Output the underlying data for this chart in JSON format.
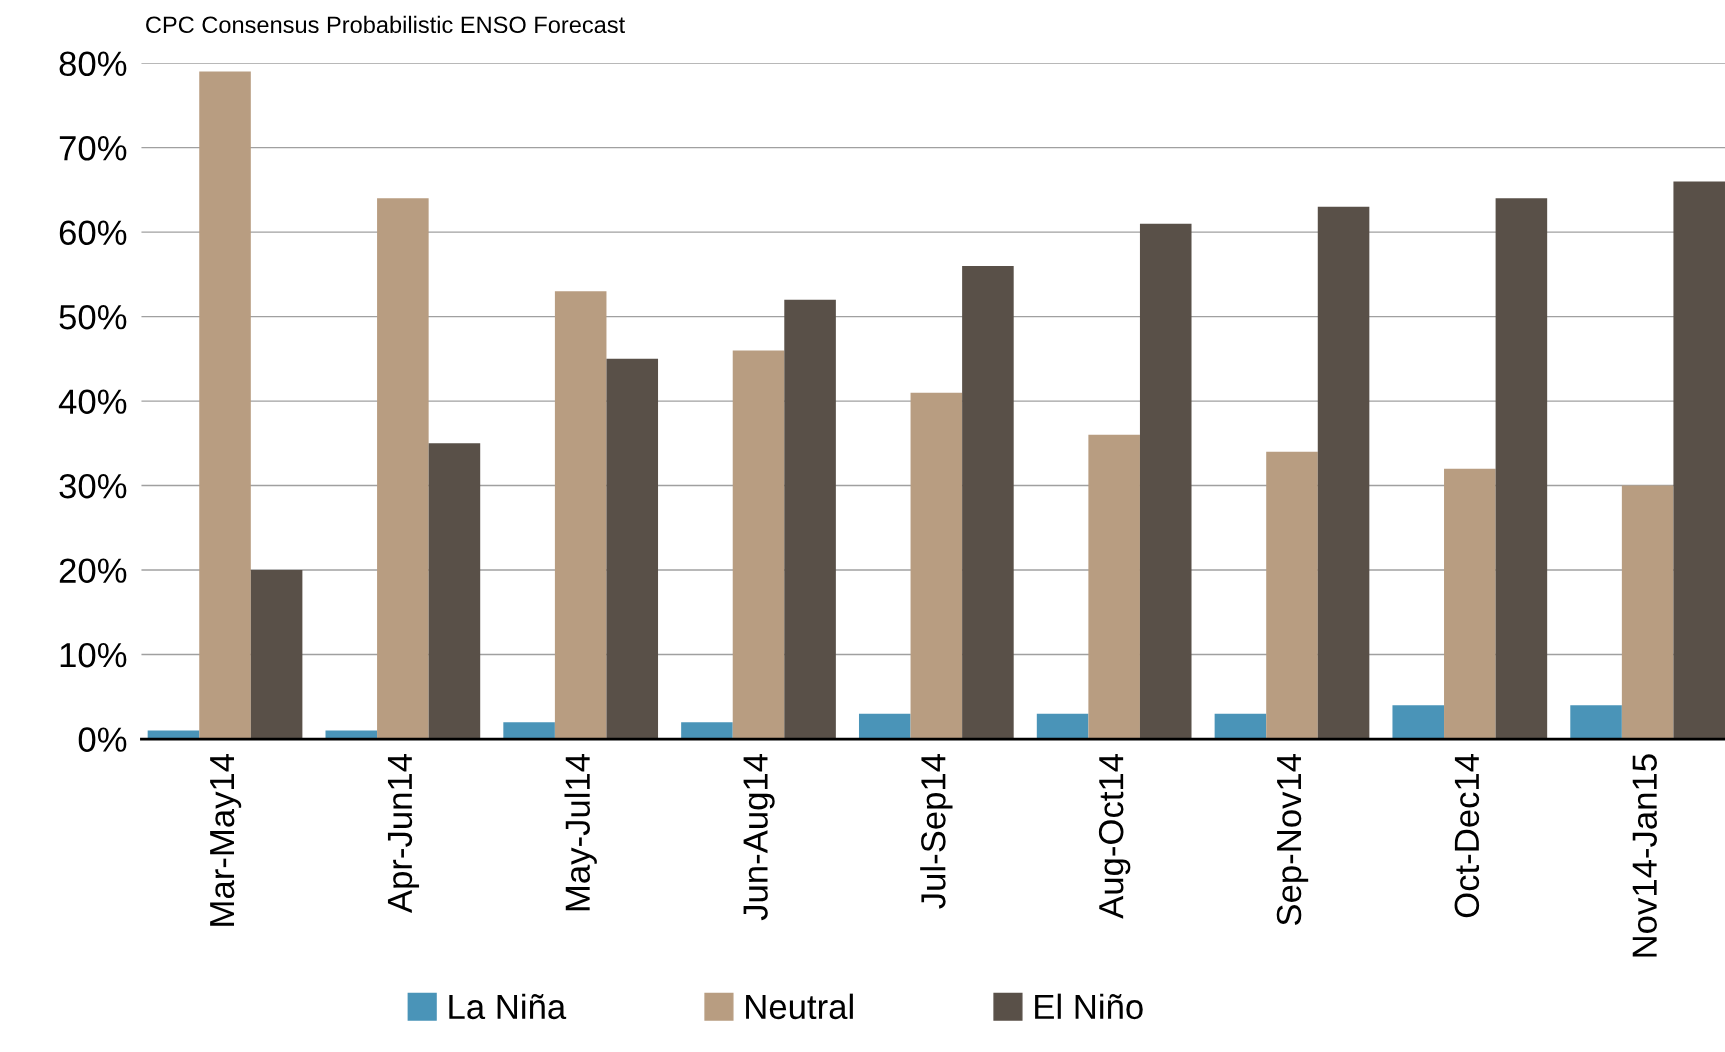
{
  "chart_data": {
    "type": "bar",
    "title": "CPC Consensus Probabilistic ENSO Forecast",
    "categories": [
      "Mar-May14",
      "Apr-Jun14",
      "May-Jul14",
      "Jun-Aug14",
      "Jul-Sep14",
      "Aug-Oct14",
      "Sep-Nov14",
      "Oct-Dec14",
      "Nov14-Jan15"
    ],
    "series": [
      {
        "name": "La Niña",
        "color": "#4a94b8",
        "values": [
          1,
          1,
          2,
          2,
          3,
          3,
          3,
          4,
          4
        ]
      },
      {
        "name": "Neutral",
        "color": "#b89d81",
        "values": [
          79,
          64,
          53,
          46,
          41,
          36,
          34,
          32,
          30
        ]
      },
      {
        "name": "El Niño",
        "color": "#595048",
        "values": [
          20,
          35,
          45,
          52,
          56,
          61,
          63,
          64,
          66
        ]
      }
    ],
    "ylim": [
      0,
      80
    ],
    "yticks": [
      {
        "value": 0,
        "label": "0%"
      },
      {
        "value": 10,
        "label": "10%"
      },
      {
        "value": 20,
        "label": "20%"
      },
      {
        "value": 30,
        "label": "30%"
      },
      {
        "value": 40,
        "label": "40%"
      },
      {
        "value": 50,
        "label": "50%"
      },
      {
        "value": 60,
        "label": "60%"
      },
      {
        "value": 70,
        "label": "70%"
      },
      {
        "value": 80,
        "label": "80%"
      }
    ],
    "grid": "y",
    "legend": "bottom"
  }
}
